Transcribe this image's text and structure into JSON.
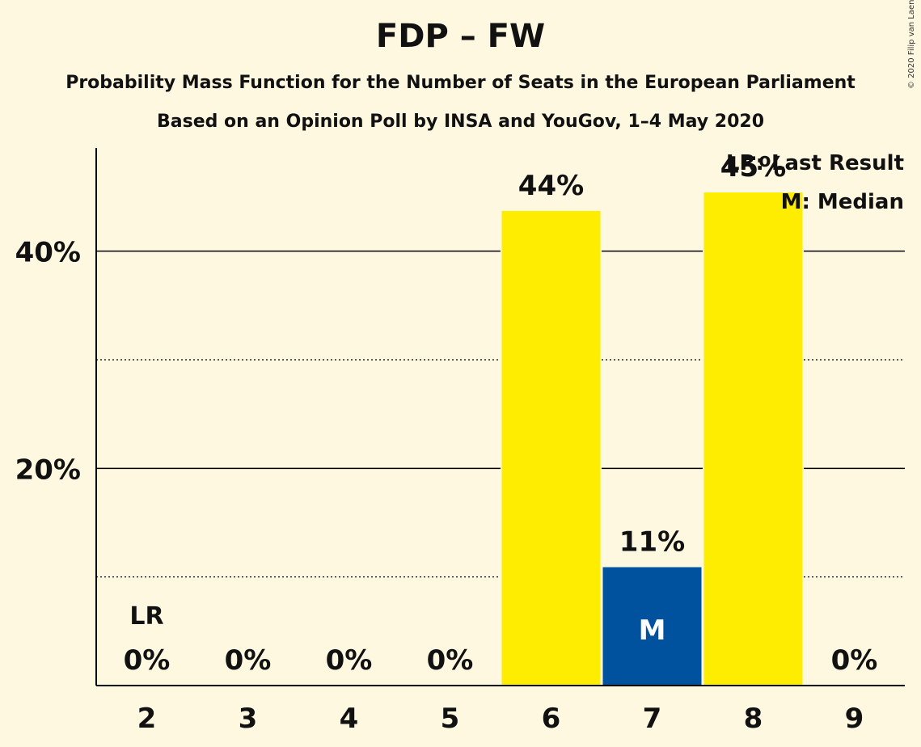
{
  "title": "FDP – FW",
  "subtitle": "Probability Mass Function for the Number of Seats in the European Parliament",
  "subtitle2": "Based on an Opinion Poll by INSA and YouGov, 1–4 May 2020",
  "copyright": "© 2020 Filip van Laenen",
  "legend": {
    "last_result": "LR: Last Result",
    "median": "M: Median"
  },
  "markers": {
    "last_result": "LR",
    "median": "M"
  },
  "colors": {
    "bar": "#ffed00",
    "median_bar": "#00519e",
    "background": "#fff8e1"
  },
  "chart_data": {
    "type": "bar",
    "categories": [
      "2",
      "3",
      "4",
      "5",
      "6",
      "7",
      "8",
      "9"
    ],
    "values": [
      0,
      0,
      0,
      0,
      43.7,
      10.9,
      45.4,
      0
    ],
    "labels": [
      "0%",
      "0%",
      "0%",
      "0%",
      "44%",
      "11%",
      "45%",
      "0%"
    ],
    "ylim": [
      0,
      49.5
    ],
    "yticks": [
      {
        "value": 20,
        "label": "20%"
      },
      {
        "value": 40,
        "label": "40%"
      }
    ],
    "minor_gridlines": [
      10,
      30
    ],
    "last_result_category": "2",
    "median_category": "7",
    "legend_position": "top-right"
  }
}
